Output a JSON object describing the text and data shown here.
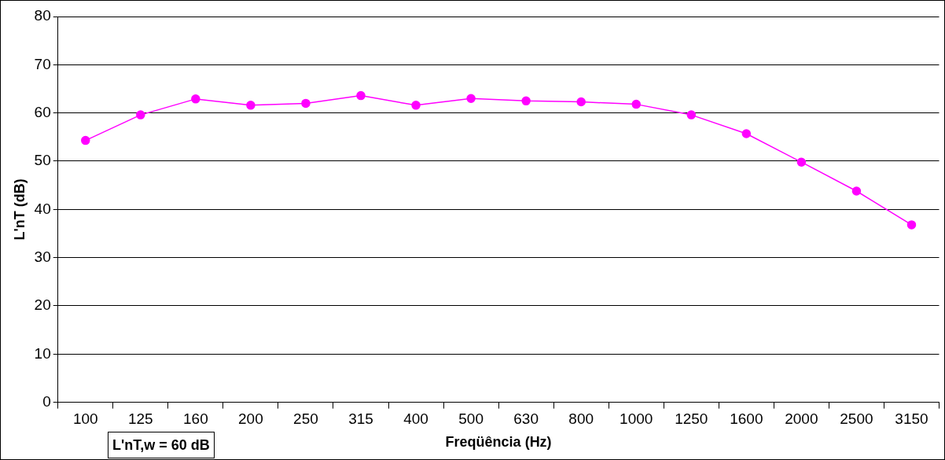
{
  "chart_data": {
    "type": "line",
    "xlabel": "Freqüência (Hz)",
    "ylabel": "L'nT (dB)",
    "categories": [
      "100",
      "125",
      "160",
      "200",
      "250",
      "315",
      "400",
      "500",
      "630",
      "800",
      "1000",
      "1250",
      "1600",
      "2000",
      "2500",
      "3150"
    ],
    "series": [
      {
        "color": "#ff00ff",
        "values": [
          54.3,
          59.6,
          62.9,
          61.6,
          62.0,
          63.6,
          61.6,
          63.0,
          62.5,
          62.3,
          61.8,
          59.6,
          55.7,
          49.8,
          43.8,
          36.8
        ]
      }
    ],
    "ylim": [
      0,
      80
    ],
    "yticks": [
      0,
      10,
      20,
      30,
      40,
      50,
      60,
      70,
      80
    ],
    "grid": "y",
    "legend": false,
    "marker": "circle",
    "line_style": "solid",
    "annotations": [
      "L'nT,w = 60 dB"
    ]
  }
}
